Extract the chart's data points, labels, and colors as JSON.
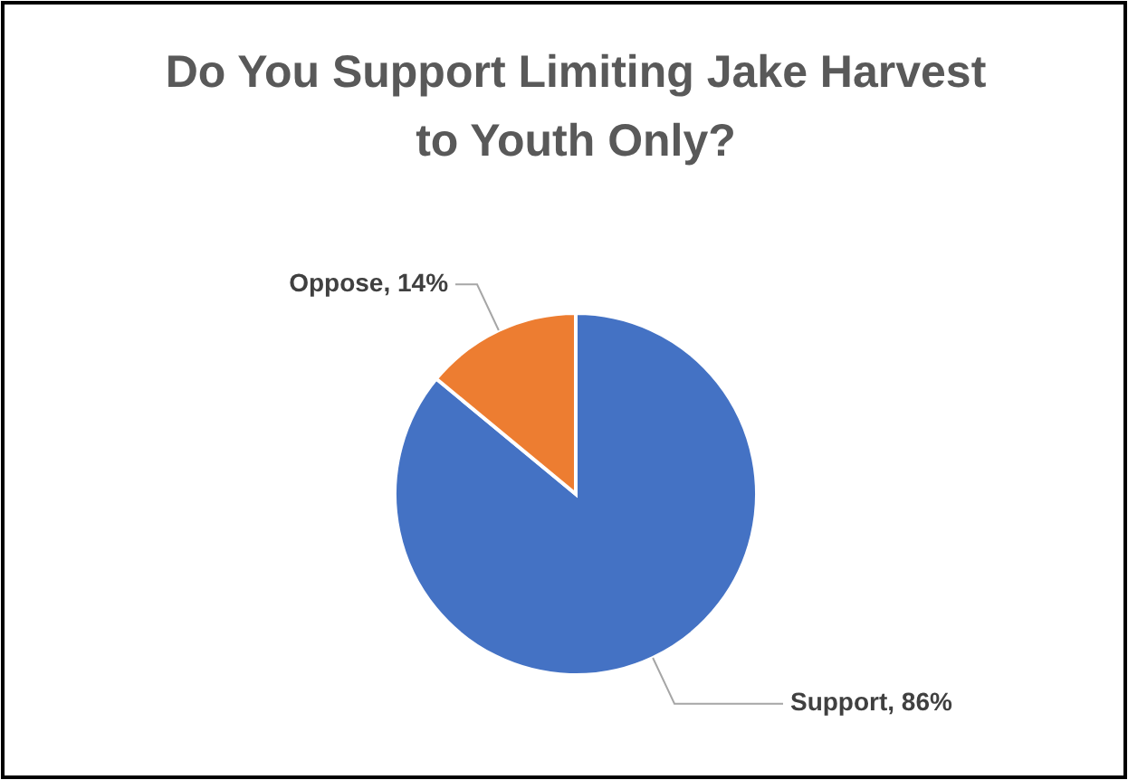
{
  "chart_data": {
    "type": "pie",
    "title": "Do You Support Limiting Jake Harvest to Youth Only?",
    "categories": [
      "Support",
      "Oppose"
    ],
    "values": [
      86,
      14
    ],
    "value_labels": [
      "86%",
      "14%"
    ],
    "colors": [
      "#4472c4",
      "#ed7d31"
    ]
  }
}
